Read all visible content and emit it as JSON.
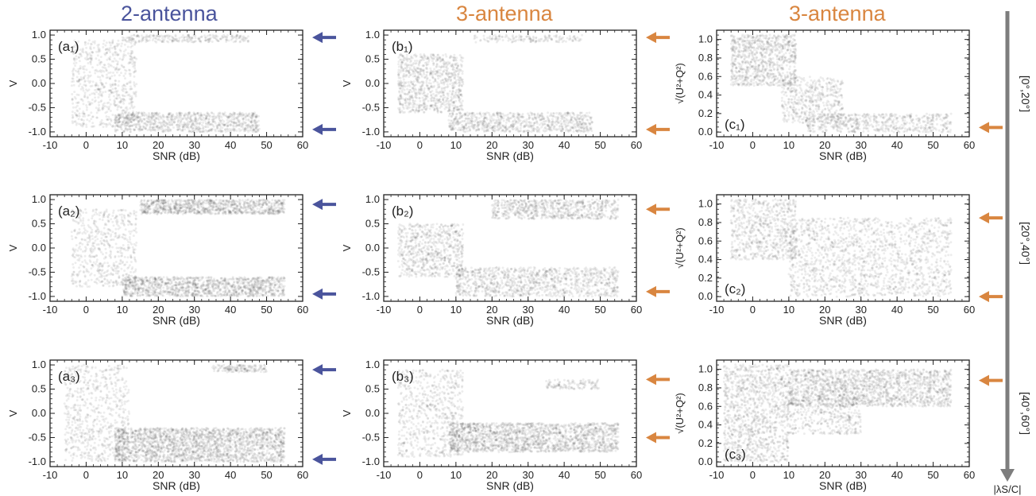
{
  "colors": {
    "two_antenna": "#4a549c",
    "three_antenna": "#d98640",
    "range_arrow": "#7d7d7d",
    "points": "#000000"
  },
  "columns": [
    {
      "title": "2-antenna",
      "color": "#4a549c"
    },
    {
      "title": "3-antenna",
      "color": "#d98640"
    },
    {
      "title": "3-antenna",
      "color": "#d98640"
    }
  ],
  "rows": [
    {
      "range_label": "[0°,20°]"
    },
    {
      "range_label": "[20°,40°]"
    },
    {
      "range_label": "[40°,60°]"
    }
  ],
  "range_axis_label": "|λS/C|",
  "chart_data": [
    {
      "id": "a1",
      "panel_label": "(a₁)",
      "type": "scatter",
      "xlabel": "SNR (dB)",
      "ylabel": "V",
      "xlim": [
        -10,
        60
      ],
      "ylim": [
        -1.1,
        1.1
      ],
      "xticks": [
        "-10",
        "0",
        "10",
        "20",
        "30",
        "40",
        "50",
        "60"
      ],
      "yticks": [
        {
          "v": 1.0,
          "t": "1.0"
        },
        {
          "v": 0.5,
          "t": "0.5"
        },
        {
          "v": 0.0,
          "t": "0.0"
        },
        {
          "v": -0.5,
          "t": "-0.5"
        },
        {
          "v": -1.0,
          "t": "-1.0"
        }
      ],
      "arrows_at": [
        0.95,
        -0.95
      ],
      "arrow_color": "#4a549c",
      "clusters": [
        {
          "x": [
            -4,
            14
          ],
          "y": [
            -0.9,
            0.9
          ],
          "n": 700
        },
        {
          "x": [
            8,
            48
          ],
          "y": [
            -1.0,
            -0.6
          ],
          "n": 900
        },
        {
          "x": [
            10,
            45
          ],
          "y": [
            0.85,
            1.0
          ],
          "n": 260
        }
      ]
    },
    {
      "id": "b1",
      "panel_label": "(b₁)",
      "type": "scatter",
      "xlabel": "SNR (dB)",
      "ylabel": "V",
      "xlim": [
        -10,
        60
      ],
      "ylim": [
        -1.1,
        1.1
      ],
      "xticks": [
        "-10",
        "0",
        "10",
        "20",
        "30",
        "40",
        "50",
        "60"
      ],
      "yticks": [
        {
          "v": 1.0,
          "t": "1.0"
        },
        {
          "v": 0.5,
          "t": "0.5"
        },
        {
          "v": 0.0,
          "t": "0.0"
        },
        {
          "v": -0.5,
          "t": "-0.5"
        },
        {
          "v": -1.0,
          "t": "-1.0"
        }
      ],
      "arrows_at": [
        0.95,
        -0.95
      ],
      "arrow_color": "#d98640",
      "clusters": [
        {
          "x": [
            -6,
            12
          ],
          "y": [
            -0.6,
            0.6
          ],
          "n": 900
        },
        {
          "x": [
            8,
            48
          ],
          "y": [
            -1.0,
            -0.6
          ],
          "n": 800
        },
        {
          "x": [
            15,
            45
          ],
          "y": [
            0.85,
            1.0
          ],
          "n": 160
        }
      ]
    },
    {
      "id": "c1",
      "panel_label": "(c₁)",
      "type": "scatter",
      "xlabel": "SNR (dB)",
      "ylabel": "√(U²+Q²)",
      "xlim": [
        -10,
        60
      ],
      "ylim": [
        -0.05,
        1.1
      ],
      "xticks": [
        "-10",
        "0",
        "10",
        "20",
        "30",
        "40",
        "50",
        "60"
      ],
      "yticks": [
        {
          "v": 1.0,
          "t": "1.0"
        },
        {
          "v": 0.8,
          "t": "0.8"
        },
        {
          "v": 0.6,
          "t": "0.6"
        },
        {
          "v": 0.4,
          "t": "0.4"
        },
        {
          "v": 0.2,
          "t": "0.2"
        },
        {
          "v": 0.0,
          "t": "0.0"
        }
      ],
      "arrows_at": [
        0.05
      ],
      "arrow_color": "#d98640",
      "clusters": [
        {
          "x": [
            -6,
            12
          ],
          "y": [
            0.5,
            1.05
          ],
          "n": 900
        },
        {
          "x": [
            8,
            25
          ],
          "y": [
            0.1,
            0.6
          ],
          "n": 500
        },
        {
          "x": [
            15,
            55
          ],
          "y": [
            0.0,
            0.2
          ],
          "n": 600
        }
      ]
    },
    {
      "id": "a2",
      "panel_label": "(a₂)",
      "type": "scatter",
      "xlabel": "SNR (dB)",
      "ylabel": "V",
      "xlim": [
        -10,
        60
      ],
      "ylim": [
        -1.1,
        1.1
      ],
      "xticks": [
        "-10",
        "0",
        "10",
        "20",
        "30",
        "40",
        "50",
        "60"
      ],
      "yticks": [
        {
          "v": 1.0,
          "t": "1.0"
        },
        {
          "v": 0.5,
          "t": "0.5"
        },
        {
          "v": 0.0,
          "t": "0.0"
        },
        {
          "v": -0.5,
          "t": "-0.5"
        },
        {
          "v": -1.0,
          "t": "-1.0"
        }
      ],
      "arrows_at": [
        0.9,
        -0.95
      ],
      "arrow_color": "#4a549c",
      "clusters": [
        {
          "x": [
            -4,
            14
          ],
          "y": [
            -0.8,
            0.8
          ],
          "n": 600
        },
        {
          "x": [
            10,
            55
          ],
          "y": [
            -1.0,
            -0.6
          ],
          "n": 1300
        },
        {
          "x": [
            15,
            55
          ],
          "y": [
            0.7,
            1.0
          ],
          "n": 1000
        }
      ]
    },
    {
      "id": "b2",
      "panel_label": "(b₂)",
      "type": "scatter",
      "xlabel": "SNR (dB)",
      "ylabel": "V",
      "xlim": [
        -10,
        60
      ],
      "ylim": [
        -1.1,
        1.1
      ],
      "xticks": [
        "-10",
        "0",
        "10",
        "20",
        "30",
        "40",
        "50",
        "60"
      ],
      "yticks": [
        {
          "v": 1.0,
          "t": "1.0"
        },
        {
          "v": 0.5,
          "t": "0.5"
        },
        {
          "v": 0.0,
          "t": "0.0"
        },
        {
          "v": -0.5,
          "t": "-0.5"
        },
        {
          "v": -1.0,
          "t": "-1.0"
        }
      ],
      "arrows_at": [
        0.8,
        -0.9
      ],
      "arrow_color": "#d98640",
      "clusters": [
        {
          "x": [
            -6,
            12
          ],
          "y": [
            -0.6,
            0.5
          ],
          "n": 700
        },
        {
          "x": [
            10,
            55
          ],
          "y": [
            -1.0,
            -0.4
          ],
          "n": 1100
        },
        {
          "x": [
            20,
            55
          ],
          "y": [
            0.6,
            1.0
          ],
          "n": 700
        }
      ]
    },
    {
      "id": "c2",
      "panel_label": "(c₂)",
      "type": "scatter",
      "xlabel": "SNR (dB)",
      "ylabel": "√(U²+Q²)",
      "xlim": [
        -10,
        60
      ],
      "ylim": [
        -0.05,
        1.1
      ],
      "xticks": [
        "-10",
        "0",
        "10",
        "20",
        "30",
        "40",
        "50",
        "60"
      ],
      "yticks": [
        {
          "v": 1.0,
          "t": "1.0"
        },
        {
          "v": 0.8,
          "t": "0.8"
        },
        {
          "v": 0.6,
          "t": "0.6"
        },
        {
          "v": 0.4,
          "t": "0.4"
        },
        {
          "v": 0.2,
          "t": "0.2"
        },
        {
          "v": 0.0,
          "t": "0.0"
        }
      ],
      "arrows_at": [
        0.85,
        0.0
      ],
      "arrow_color": "#d98640",
      "clusters": [
        {
          "x": [
            -6,
            12
          ],
          "y": [
            0.4,
            1.05
          ],
          "n": 700
        },
        {
          "x": [
            10,
            55
          ],
          "y": [
            0.0,
            0.85
          ],
          "n": 1600
        }
      ]
    },
    {
      "id": "a3",
      "panel_label": "(a₃)",
      "type": "scatter",
      "xlabel": "SNR (dB)",
      "ylabel": "V",
      "xlim": [
        -10,
        60
      ],
      "ylim": [
        -1.1,
        1.1
      ],
      "xticks": [
        "-10",
        "0",
        "10",
        "20",
        "30",
        "40",
        "50",
        "60"
      ],
      "yticks": [
        {
          "v": 1.0,
          "t": "1.0"
        },
        {
          "v": 0.5,
          "t": "0.5"
        },
        {
          "v": 0.0,
          "t": "0.0"
        },
        {
          "v": -0.5,
          "t": "-0.5"
        },
        {
          "v": -1.0,
          "t": "-1.0"
        }
      ],
      "arrows_at": [
        0.9,
        -0.95
      ],
      "arrow_color": "#4a549c",
      "clusters": [
        {
          "x": [
            -6,
            12
          ],
          "y": [
            -1.0,
            1.0
          ],
          "n": 700
        },
        {
          "x": [
            8,
            55
          ],
          "y": [
            -1.0,
            -0.3
          ],
          "n": 2200
        },
        {
          "x": [
            35,
            50
          ],
          "y": [
            0.85,
            1.0
          ],
          "n": 160
        }
      ]
    },
    {
      "id": "b3",
      "panel_label": "(b₃)",
      "type": "scatter",
      "xlabel": "SNR (dB)",
      "ylabel": "V",
      "xlim": [
        -10,
        60
      ],
      "ylim": [
        -1.1,
        1.1
      ],
      "xticks": [
        "-10",
        "0",
        "10",
        "20",
        "30",
        "40",
        "50",
        "60"
      ],
      "yticks": [
        {
          "v": 1.0,
          "t": "1.0"
        },
        {
          "v": 0.5,
          "t": "0.5"
        },
        {
          "v": 0.0,
          "t": "0.0"
        },
        {
          "v": -0.5,
          "t": "-0.5"
        },
        {
          "v": -1.0,
          "t": "-1.0"
        }
      ],
      "arrows_at": [
        0.7,
        -0.5
      ],
      "arrow_color": "#d98640",
      "clusters": [
        {
          "x": [
            -6,
            12
          ],
          "y": [
            -0.9,
            0.9
          ],
          "n": 700
        },
        {
          "x": [
            8,
            55
          ],
          "y": [
            -0.8,
            -0.2
          ],
          "n": 1800
        },
        {
          "x": [
            35,
            50
          ],
          "y": [
            0.5,
            0.7
          ],
          "n": 120
        }
      ]
    },
    {
      "id": "c3",
      "panel_label": "(c₃)",
      "type": "scatter",
      "xlabel": "SNR (dB)",
      "ylabel": "√(U²+Q²)",
      "xlim": [
        -10,
        60
      ],
      "ylim": [
        -0.05,
        1.1
      ],
      "xticks": [
        "-10",
        "0",
        "10",
        "20",
        "30",
        "40",
        "50",
        "60"
      ],
      "yticks": [
        {
          "v": 1.0,
          "t": "1.0"
        },
        {
          "v": 0.8,
          "t": "0.8"
        },
        {
          "v": 0.6,
          "t": "0.6"
        },
        {
          "v": 0.4,
          "t": "0.4"
        },
        {
          "v": 0.2,
          "t": "0.2"
        },
        {
          "v": 0.0,
          "t": "0.0"
        }
      ],
      "arrows_at": [
        0.88
      ],
      "arrow_color": "#d98640",
      "clusters": [
        {
          "x": [
            -8,
            10
          ],
          "y": [
            0.0,
            1.05
          ],
          "n": 1200
        },
        {
          "x": [
            10,
            55
          ],
          "y": [
            0.6,
            1.0
          ],
          "n": 1700
        },
        {
          "x": [
            10,
            30
          ],
          "y": [
            0.3,
            0.7
          ],
          "n": 400
        }
      ]
    }
  ]
}
